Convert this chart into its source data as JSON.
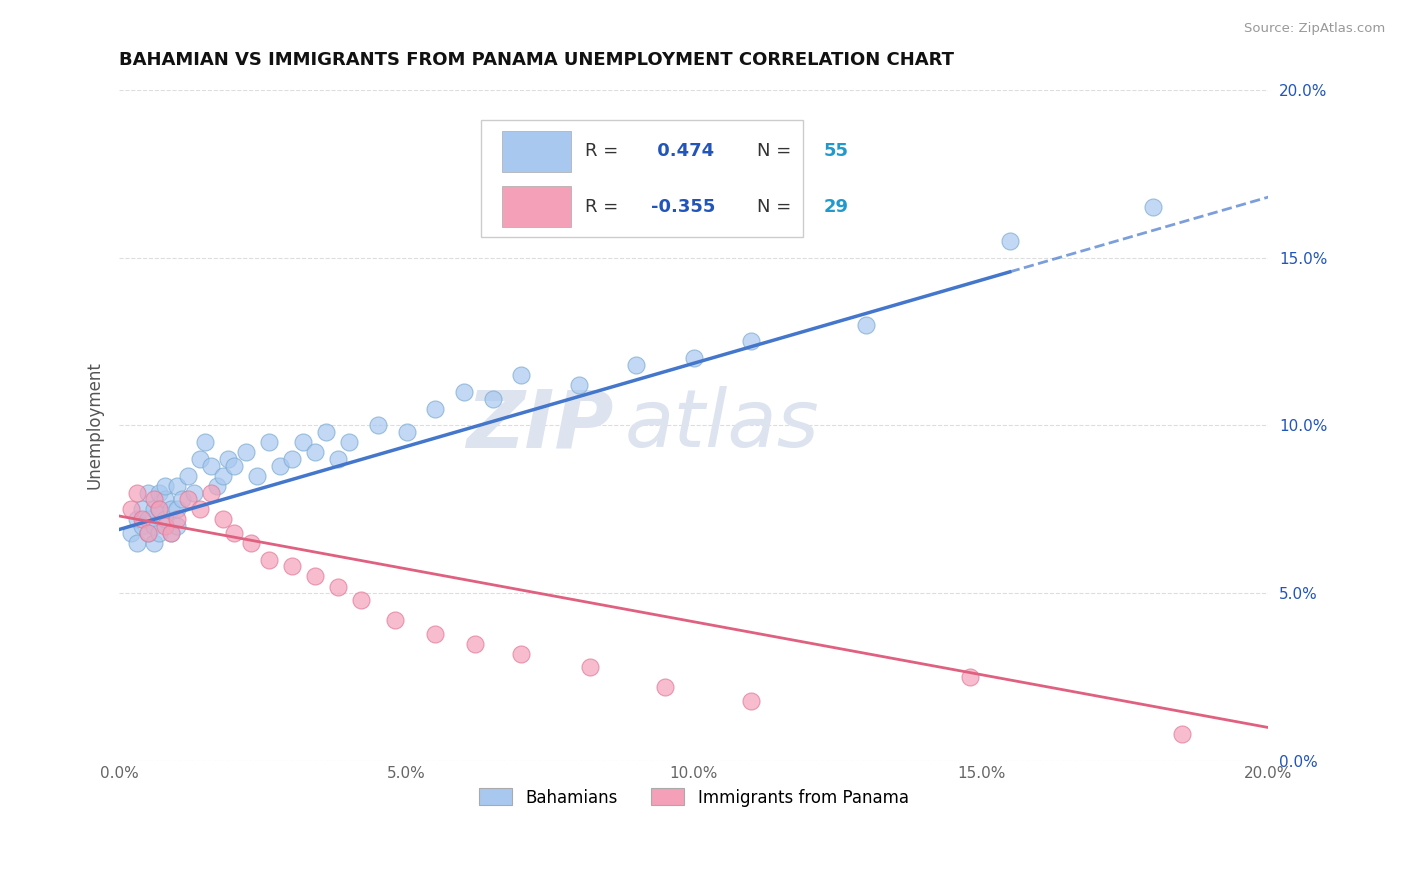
{
  "title": "BAHAMIAN VS IMMIGRANTS FROM PANAMA UNEMPLOYMENT CORRELATION CHART",
  "source": "Source: ZipAtlas.com",
  "ylabel": "Unemployment",
  "xlim": [
    0.0,
    0.2
  ],
  "ylim": [
    0.0,
    0.2
  ],
  "xtick_vals": [
    0.0,
    0.05,
    0.1,
    0.15,
    0.2
  ],
  "xtick_labels": [
    "0.0%",
    "5.0%",
    "10.0%",
    "15.0%",
    "20.0%"
  ],
  "ytick_vals": [
    0.0,
    0.05,
    0.1,
    0.15,
    0.2
  ],
  "ytick_labels": [
    "0.0%",
    "5.0%",
    "10.0%",
    "15.0%",
    "20.0%"
  ],
  "series1_label": "Bahamians",
  "series1_color": "#a8c8f0",
  "series1_edge": "#7aaad0",
  "series1_R": 0.474,
  "series1_N": 55,
  "series2_label": "Immigrants from Panama",
  "series2_color": "#f4a0b8",
  "series2_edge": "#e07898",
  "series2_R": -0.355,
  "series2_N": 29,
  "trend1_color": "#4477cc",
  "trend2_color": "#e06080",
  "legend_R_color": "#2255bb",
  "legend_N_color": "#2299cc",
  "title_color": "#111111",
  "source_color": "#999999",
  "grid_color": "#dddddd",
  "watermark_color": "#dde4f0",
  "bahamian_x": [
    0.002,
    0.003,
    0.003,
    0.004,
    0.004,
    0.005,
    0.005,
    0.005,
    0.006,
    0.006,
    0.006,
    0.007,
    0.007,
    0.007,
    0.008,
    0.008,
    0.008,
    0.009,
    0.009,
    0.01,
    0.01,
    0.01,
    0.011,
    0.012,
    0.013,
    0.014,
    0.015,
    0.016,
    0.017,
    0.018,
    0.019,
    0.02,
    0.022,
    0.024,
    0.026,
    0.028,
    0.03,
    0.032,
    0.034,
    0.036,
    0.038,
    0.04,
    0.045,
    0.05,
    0.055,
    0.06,
    0.065,
    0.07,
    0.08,
    0.09,
    0.1,
    0.11,
    0.13,
    0.155,
    0.18
  ],
  "bahamian_y": [
    0.068,
    0.072,
    0.065,
    0.07,
    0.075,
    0.068,
    0.072,
    0.08,
    0.065,
    0.075,
    0.07,
    0.068,
    0.075,
    0.08,
    0.072,
    0.078,
    0.082,
    0.068,
    0.075,
    0.07,
    0.075,
    0.082,
    0.078,
    0.085,
    0.08,
    0.09,
    0.095,
    0.088,
    0.082,
    0.085,
    0.09,
    0.088,
    0.092,
    0.085,
    0.095,
    0.088,
    0.09,
    0.095,
    0.092,
    0.098,
    0.09,
    0.095,
    0.1,
    0.098,
    0.105,
    0.11,
    0.108,
    0.115,
    0.112,
    0.118,
    0.12,
    0.125,
    0.13,
    0.155,
    0.165
  ],
  "panama_x": [
    0.002,
    0.003,
    0.004,
    0.005,
    0.006,
    0.007,
    0.008,
    0.009,
    0.01,
    0.012,
    0.014,
    0.016,
    0.018,
    0.02,
    0.023,
    0.026,
    0.03,
    0.034,
    0.038,
    0.042,
    0.048,
    0.055,
    0.062,
    0.07,
    0.082,
    0.095,
    0.11,
    0.148,
    0.185
  ],
  "panama_y": [
    0.075,
    0.08,
    0.072,
    0.068,
    0.078,
    0.075,
    0.07,
    0.068,
    0.072,
    0.078,
    0.075,
    0.08,
    0.072,
    0.068,
    0.065,
    0.06,
    0.058,
    0.055,
    0.052,
    0.048,
    0.042,
    0.038,
    0.035,
    0.032,
    0.028,
    0.022,
    0.018,
    0.025,
    0.008
  ],
  "trend1_x0": 0.0,
  "trend1_y0": 0.069,
  "trend1_x1": 0.2,
  "trend1_y1": 0.168,
  "trend1_xdash_start": 0.155,
  "trend2_x0": 0.0,
  "trend2_y0": 0.073,
  "trend2_x1": 0.2,
  "trend2_y1": 0.01
}
